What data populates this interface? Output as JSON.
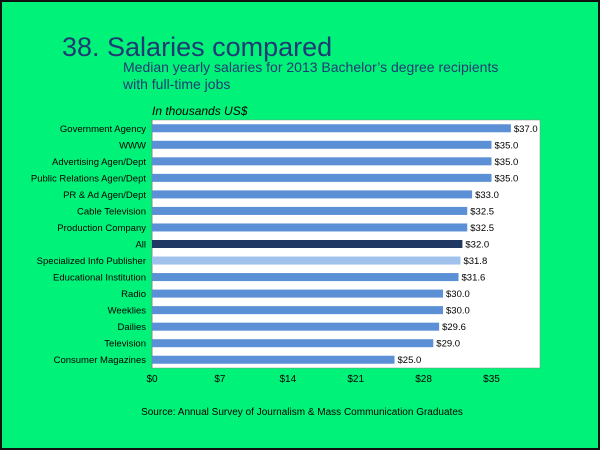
{
  "title": "38. Salaries compared",
  "subtitle": "Median yearly salaries for 2013 Bachelor’s degree recipients with full-time jobs",
  "units_label": "In thousands US$",
  "source": "Source: Annual Survey of Journalism & Mass Communication Graduates",
  "colors": {
    "background": "#00f279",
    "bar": "#5b8fd6",
    "bar_all": "#1f3864",
    "bar_specialized": "#9fc1ec",
    "plot_area": "#ffffff",
    "title": "#1f3b73"
  },
  "chart_data": {
    "type": "bar",
    "orientation": "horizontal",
    "categories": [
      "Government Agency",
      "WWW",
      "Advertising Agen/Dept",
      "Public Relations Agen/Dept",
      "PR & Ad Agen/Dept",
      "Cable Television",
      "Production Company",
      "All",
      "Specialized Info Publisher",
      "Educational Institution",
      "Radio",
      "Weeklies",
      "Dailies",
      "Television",
      "Consumer Magazines"
    ],
    "values": [
      37.0,
      35.0,
      35.0,
      35.0,
      33.0,
      32.5,
      32.5,
      32.0,
      31.8,
      31.6,
      30.0,
      30.0,
      29.6,
      29.0,
      25.0
    ],
    "data_labels": [
      "$37.0",
      "$35.0",
      "$35.0",
      "$35.0",
      "$33.0",
      "$32.5",
      "$32.5",
      "$32.0",
      "$31.8",
      "$31.6",
      "$30.0",
      "$30.0",
      "$29.6",
      "$29.0",
      "$25.0"
    ],
    "xlim": [
      0,
      40
    ],
    "xticks": [
      0,
      7,
      14,
      21,
      28,
      35
    ],
    "xtick_labels": [
      "$0",
      "$7",
      "$14",
      "$21",
      "$28",
      "$35"
    ],
    "grid": false,
    "legend": "none",
    "highlight": {
      "All": "bar_all",
      "Specialized Info Publisher": "bar_specialized"
    }
  }
}
